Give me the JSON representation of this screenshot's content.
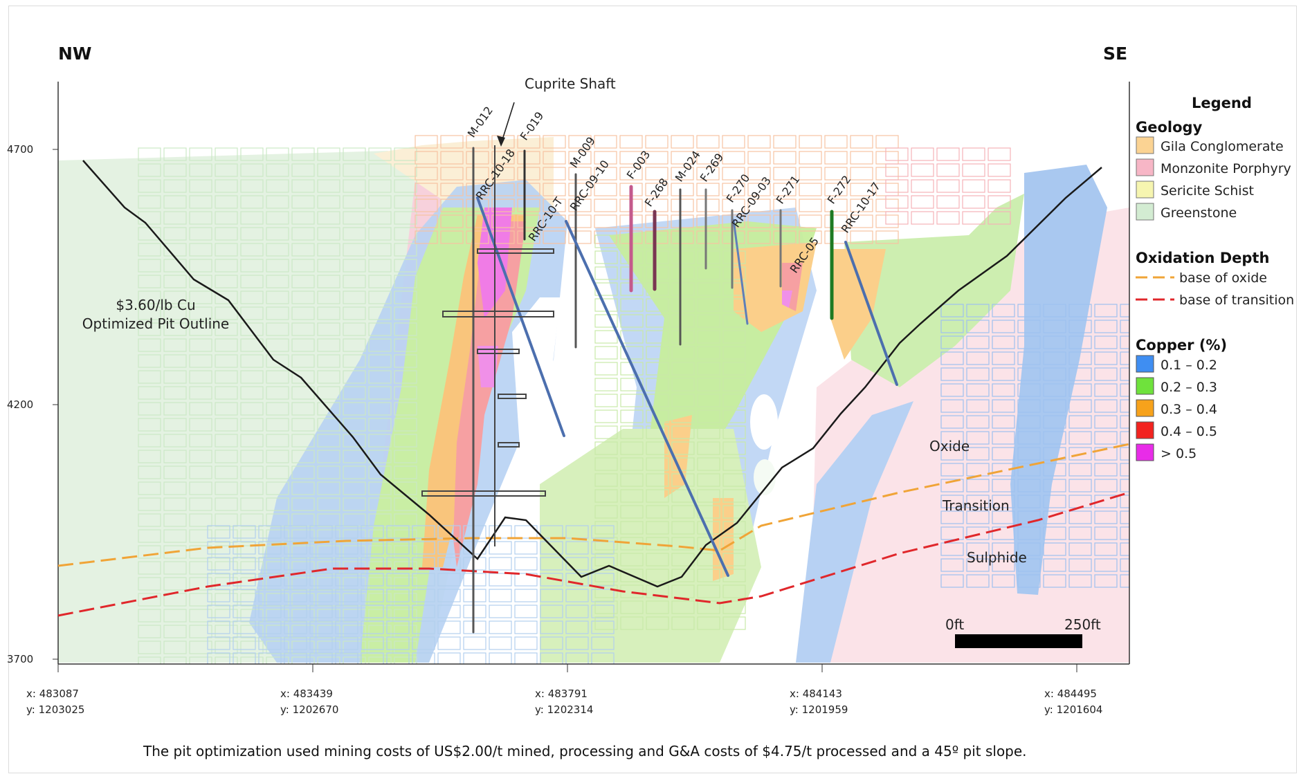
{
  "directions": {
    "left": "NW",
    "right": "SE"
  },
  "annotations": {
    "shaft": "Cuprite Shaft",
    "pit_line1": "$3.60/lb Cu",
    "pit_line2": "Optimized Pit Outline",
    "oxide": "Oxide",
    "transition": "Transition",
    "sulphide": "Sulphide"
  },
  "elevation_labels": [
    "4700",
    "4200",
    "3700"
  ],
  "coordinates": [
    {
      "x": "x: 483087",
      "y": "y: 1203025"
    },
    {
      "x": "x: 483439",
      "y": "y: 1202670"
    },
    {
      "x": "x: 483791",
      "y": "y: 1202314"
    },
    {
      "x": "x: 484143",
      "y": "y: 1201959"
    },
    {
      "x": "x: 484495",
      "y": "y: 1201604"
    }
  ],
  "scale_bar": {
    "start": "0ft",
    "end": "250ft"
  },
  "drillholes": [
    "M-012",
    "F-019",
    "RRC-10-18",
    "M-009",
    "RRC-10-T",
    "RRC-09-10",
    "F-003",
    "F-268",
    "M-024",
    "F-269",
    "F-270",
    "RRC-09-03",
    "F-271",
    "RRC-05",
    "F-272",
    "RRC-10-17"
  ],
  "legend": {
    "title": "Legend",
    "geology_title": "Geology",
    "geology": [
      {
        "label": "Gila Conglomerate",
        "color": "#fbd393"
      },
      {
        "label": "Monzonite Porphyry",
        "color": "#f7b6c6"
      },
      {
        "label": "Sericite Schist",
        "color": "#f6f5b0"
      },
      {
        "label": "Greenstone",
        "color": "#d3ecd2"
      }
    ],
    "oxidation_title": "Oxidation Depth",
    "oxidation": [
      {
        "label": "base of oxide",
        "color": "#f0a437"
      },
      {
        "label": "base of transition",
        "color": "#e0272b"
      }
    ],
    "copper_title": "Copper (%)",
    "copper": [
      {
        "label": "0.1 – 0.2",
        "color": "#3f8ef2"
      },
      {
        "label": "0.2 – 0.3",
        "color": "#6fe23c"
      },
      {
        "label": "0.3 – 0.4",
        "color": "#f7a21b"
      },
      {
        "label": "0.4 – 0.5",
        "color": "#f2231f"
      },
      {
        "label": "> 0.5",
        "color": "#e82ce8"
      }
    ]
  },
  "footnote": "The pit optimization used mining costs of US$2.00/t mined, processing and G&A costs of $4.75/t processed and a 45º pit slope."
}
